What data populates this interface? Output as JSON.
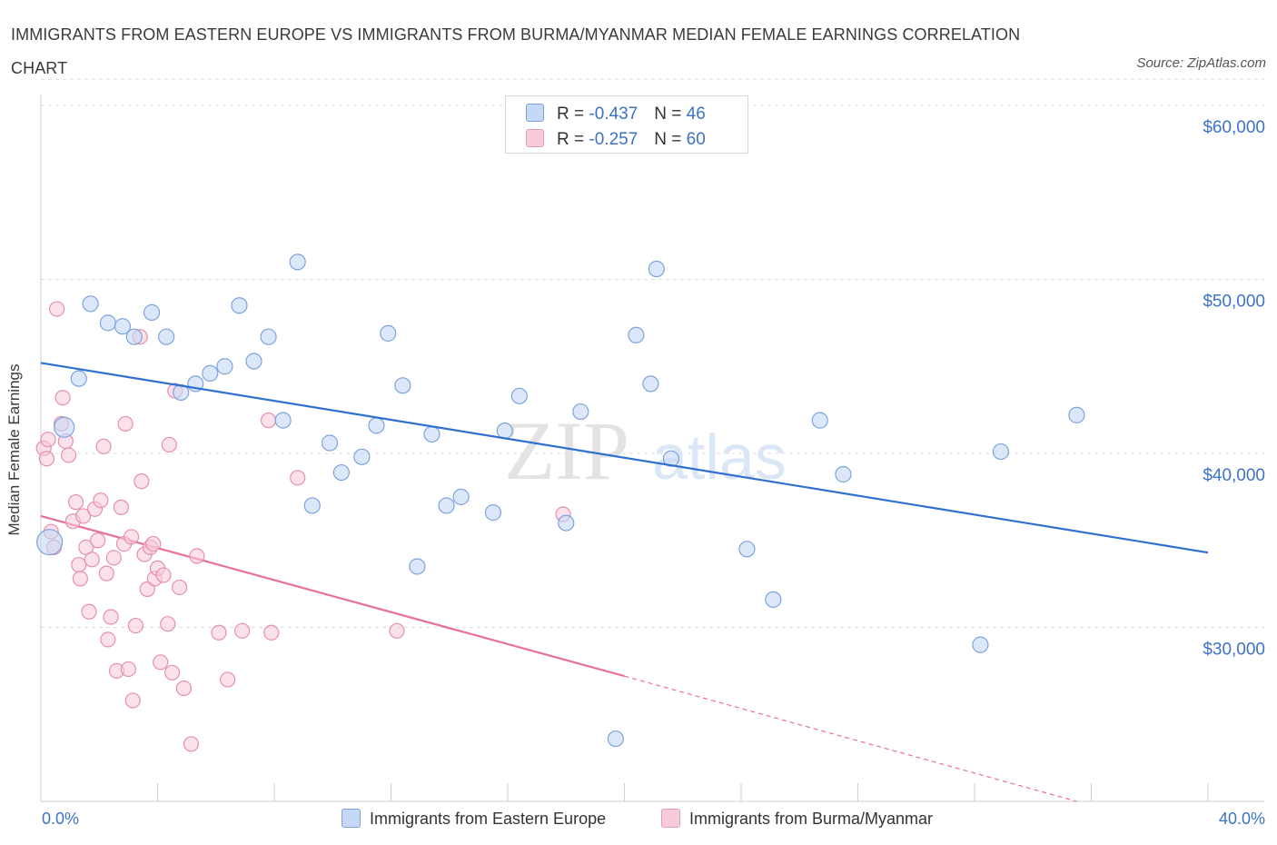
{
  "header": {
    "title": "IMMIGRANTS FROM EASTERN EUROPE VS IMMIGRANTS FROM BURMA/MYANMAR MEDIAN FEMALE EARNINGS CORRELATION CHART",
    "source": "Source: ZipAtlas.com"
  },
  "legend": {
    "rows": [
      {
        "r_label": "R =",
        "r_value": "-0.437",
        "n_label": "N =",
        "n_value": "46"
      },
      {
        "r_label": "R =",
        "r_value": "-0.257",
        "n_label": "N =",
        "n_value": "60"
      }
    ]
  },
  "watermark": {
    "zip": "ZIP",
    "atlas": "atlas"
  },
  "colors": {
    "blue": "#3d72c8",
    "blue_fill": "#c5d8f5",
    "blue_line": "#2f6fd0",
    "pink": "#e8719a",
    "pink_fill": "#f8cbd9",
    "grid": "#dcdcdc"
  },
  "chart_data": {
    "type": "scatter",
    "title": "IMMIGRANTS FROM EASTERN EUROPE VS IMMIGRANTS FROM BURMA/MYANMAR MEDIAN FEMALE EARNINGS CORRELATION CHART",
    "xlabel": "",
    "ylabel": "Median Female Earnings",
    "xlim": [
      0,
      40
    ],
    "ylim": [
      20000,
      62000
    ],
    "x_tick_labels": [
      "0.0%",
      "40.0%"
    ],
    "y_ticks": [
      30000,
      40000,
      50000,
      60000
    ],
    "y_tick_labels": [
      "$30,000",
      "$40,000",
      "$50,000",
      "$60,000"
    ],
    "grid": true,
    "series": [
      {
        "name": "Immigrants from Eastern Europe",
        "r": -0.437,
        "n": 46,
        "trend": {
          "x": [
            0,
            40
          ],
          "y": [
            45200,
            34300
          ]
        },
        "points": [
          [
            0.3,
            34900
          ],
          [
            0.8,
            41500
          ],
          [
            1.3,
            44300
          ],
          [
            1.7,
            48600
          ],
          [
            2.3,
            47500
          ],
          [
            2.8,
            47300
          ],
          [
            3.2,
            46700
          ],
          [
            3.8,
            48100
          ],
          [
            4.3,
            46700
          ],
          [
            4.8,
            43500
          ],
          [
            5.3,
            44000
          ],
          [
            5.8,
            44600
          ],
          [
            6.3,
            45000
          ],
          [
            6.8,
            48500
          ],
          [
            7.3,
            45300
          ],
          [
            7.8,
            46700
          ],
          [
            8.3,
            41900
          ],
          [
            8.8,
            51000
          ],
          [
            9.3,
            37000
          ],
          [
            9.9,
            40600
          ],
          [
            10.3,
            38900
          ],
          [
            11.0,
            39800
          ],
          [
            11.5,
            41600
          ],
          [
            11.9,
            46900
          ],
          [
            12.4,
            43900
          ],
          [
            12.9,
            33500
          ],
          [
            13.4,
            41100
          ],
          [
            13.9,
            37000
          ],
          [
            14.4,
            37500
          ],
          [
            15.5,
            36600
          ],
          [
            15.9,
            41300
          ],
          [
            16.4,
            43300
          ],
          [
            18.0,
            36000
          ],
          [
            18.5,
            42400
          ],
          [
            19.7,
            23600
          ],
          [
            20.4,
            46800
          ],
          [
            20.9,
            44000
          ],
          [
            21.1,
            50600
          ],
          [
            21.6,
            39700
          ],
          [
            24.2,
            34500
          ],
          [
            25.1,
            31600
          ],
          [
            26.7,
            41900
          ],
          [
            27.5,
            38800
          ],
          [
            32.2,
            29000
          ],
          [
            32.9,
            40100
          ],
          [
            35.5,
            42200
          ]
        ]
      },
      {
        "name": "Immigrants from Burma/Myanmar",
        "r": -0.257,
        "n": 60,
        "trend": {
          "x": [
            0,
            20
          ],
          "y": [
            36400,
            27200
          ]
        },
        "trend_extension": {
          "x": [
            20,
            35.5
          ],
          "y": [
            27200,
            20000
          ]
        },
        "points": [
          [
            0.1,
            40300
          ],
          [
            0.2,
            39700
          ],
          [
            0.25,
            40800
          ],
          [
            0.35,
            35500
          ],
          [
            0.45,
            34600
          ],
          [
            0.55,
            48300
          ],
          [
            0.7,
            41700
          ],
          [
            0.75,
            43200
          ],
          [
            0.85,
            40700
          ],
          [
            0.95,
            39900
          ],
          [
            1.1,
            36100
          ],
          [
            1.2,
            37200
          ],
          [
            1.3,
            33600
          ],
          [
            1.35,
            32800
          ],
          [
            1.45,
            36400
          ],
          [
            1.55,
            34600
          ],
          [
            1.65,
            30900
          ],
          [
            1.75,
            33900
          ],
          [
            1.85,
            36800
          ],
          [
            1.95,
            35000
          ],
          [
            2.05,
            37300
          ],
          [
            2.15,
            40400
          ],
          [
            2.25,
            33100
          ],
          [
            2.3,
            29300
          ],
          [
            2.4,
            30600
          ],
          [
            2.5,
            34000
          ],
          [
            2.6,
            27500
          ],
          [
            2.75,
            36900
          ],
          [
            2.85,
            34800
          ],
          [
            2.9,
            41700
          ],
          [
            3.0,
            27600
          ],
          [
            3.1,
            35200
          ],
          [
            3.15,
            25800
          ],
          [
            3.25,
            30100
          ],
          [
            3.4,
            46700
          ],
          [
            3.45,
            38400
          ],
          [
            3.55,
            34200
          ],
          [
            3.65,
            32200
          ],
          [
            3.75,
            34600
          ],
          [
            3.85,
            34800
          ],
          [
            3.9,
            32800
          ],
          [
            4.0,
            33400
          ],
          [
            4.1,
            28000
          ],
          [
            4.2,
            33000
          ],
          [
            4.35,
            30200
          ],
          [
            4.4,
            40500
          ],
          [
            4.5,
            27400
          ],
          [
            4.6,
            43600
          ],
          [
            4.75,
            32300
          ],
          [
            4.9,
            26500
          ],
          [
            5.15,
            23300
          ],
          [
            5.35,
            34100
          ],
          [
            6.4,
            27000
          ],
          [
            6.9,
            29800
          ],
          [
            7.8,
            41900
          ],
          [
            7.9,
            29700
          ],
          [
            8.8,
            38600
          ],
          [
            12.2,
            29800
          ],
          [
            17.9,
            36500
          ],
          [
            6.1,
            29700
          ]
        ]
      }
    ]
  },
  "bottom_legend": {
    "series_1": "Immigrants from Eastern Europe",
    "series_2": "Immigrants from Burma/Myanmar"
  }
}
